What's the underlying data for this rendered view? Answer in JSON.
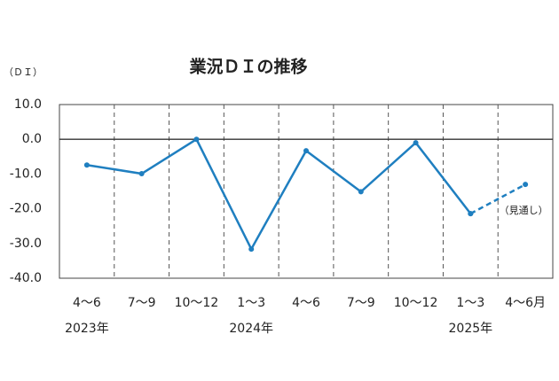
{
  "chart_data": {
    "type": "line",
    "title": "業況ＤＩの推移",
    "y_label": "（ＤＩ）",
    "categories": [
      "4〜6",
      "7〜9",
      "10〜12",
      "1〜3",
      "4〜6",
      "7〜9",
      "10〜12",
      "1〜3",
      "4〜6月"
    ],
    "year_labels": [
      "2023年",
      null,
      null,
      "2024年",
      null,
      null,
      null,
      "2025年",
      null
    ],
    "series": [
      {
        "color": "#1f7fc0",
        "dash": false,
        "values": [
          -7.4,
          -9.9,
          0.0,
          -31.6,
          -3.3,
          -15.1,
          -1.0,
          -21.4,
          null
        ]
      },
      {
        "color": "#1f7fc0",
        "dash": true,
        "values": [
          null,
          null,
          null,
          null,
          null,
          null,
          null,
          -21.4,
          -13.0
        ]
      }
    ],
    "annotation": "（見通し）",
    "ylim": [
      -40,
      10
    ],
    "yticks": [
      {
        "value": 10,
        "label": "10.0"
      },
      {
        "value": 0,
        "label": "0.0"
      },
      {
        "value": -10,
        "label": "-10.0"
      },
      {
        "value": -20,
        "label": "-20.0"
      },
      {
        "value": -30,
        "label": "-30.0"
      },
      {
        "value": -40,
        "label": "-40.0"
      }
    ],
    "zero_line": true
  }
}
